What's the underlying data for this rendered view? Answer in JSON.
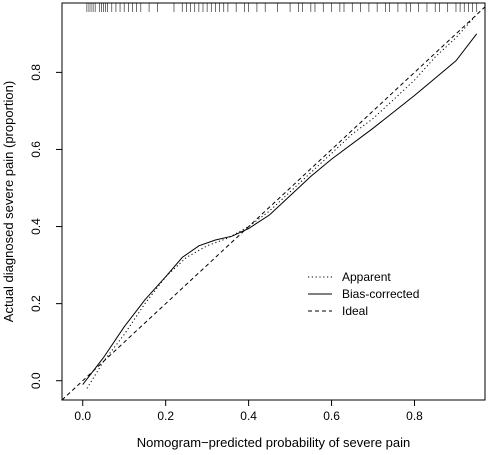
{
  "chart_data": {
    "type": "line",
    "title": "",
    "xlabel": "Nomogram−predicted probability of severe pain",
    "ylabel": "Actual diagnosed severe pain (proportion)",
    "xlim": [
      -0.05,
      0.97
    ],
    "ylim": [
      -0.05,
      0.98
    ],
    "x_ticks": [
      0.0,
      0.2,
      0.4,
      0.6,
      0.8
    ],
    "x_tick_labels": [
      "0.0",
      "0.2",
      "0.4",
      "0.6",
      "0.8"
    ],
    "y_ticks": [
      0.0,
      0.2,
      0.4,
      0.6,
      0.8
    ],
    "y_tick_labels": [
      "0.0",
      "0.2",
      "0.4",
      "0.6",
      "0.8"
    ],
    "grid": false,
    "legend_position": "lower-right",
    "series": [
      {
        "name": "Apparent",
        "style": "dotted",
        "points": [
          [
            0.01,
            -0.02
          ],
          [
            0.05,
            0.05
          ],
          [
            0.1,
            0.12
          ],
          [
            0.15,
            0.2
          ],
          [
            0.2,
            0.27
          ],
          [
            0.25,
            0.32
          ],
          [
            0.3,
            0.35
          ],
          [
            0.35,
            0.37
          ],
          [
            0.4,
            0.4
          ],
          [
            0.45,
            0.44
          ],
          [
            0.5,
            0.49
          ],
          [
            0.55,
            0.54
          ],
          [
            0.6,
            0.59
          ],
          [
            0.65,
            0.64
          ],
          [
            0.7,
            0.68
          ],
          [
            0.75,
            0.73
          ],
          [
            0.8,
            0.78
          ],
          [
            0.85,
            0.84
          ],
          [
            0.9,
            0.89
          ],
          [
            0.95,
            0.95
          ]
        ]
      },
      {
        "name": "Bias-corrected",
        "style": "solid",
        "points": [
          [
            0.0,
            -0.01
          ],
          [
            0.05,
            0.06
          ],
          [
            0.1,
            0.14
          ],
          [
            0.15,
            0.21
          ],
          [
            0.2,
            0.27
          ],
          [
            0.24,
            0.32
          ],
          [
            0.28,
            0.35
          ],
          [
            0.32,
            0.365
          ],
          [
            0.36,
            0.375
          ],
          [
            0.4,
            0.395
          ],
          [
            0.45,
            0.43
          ],
          [
            0.5,
            0.48
          ],
          [
            0.55,
            0.53
          ],
          [
            0.6,
            0.575
          ],
          [
            0.7,
            0.655
          ],
          [
            0.8,
            0.74
          ],
          [
            0.9,
            0.83
          ],
          [
            0.95,
            0.9
          ]
        ]
      },
      {
        "name": "Ideal",
        "style": "dashed",
        "points": [
          [
            -0.05,
            -0.05
          ],
          [
            0.97,
            0.97
          ]
        ]
      }
    ],
    "rug_positions": [
      0.01,
      0.015,
      0.02,
      0.025,
      0.03,
      0.04,
      0.045,
      0.05,
      0.055,
      0.06,
      0.07,
      0.08,
      0.09,
      0.1,
      0.11,
      0.12,
      0.13,
      0.14,
      0.16,
      0.18,
      0.22,
      0.24,
      0.25,
      0.26,
      0.27,
      0.28,
      0.29,
      0.3,
      0.31,
      0.32,
      0.33,
      0.34,
      0.35,
      0.37,
      0.39,
      0.4,
      0.42,
      0.44,
      0.47,
      0.5,
      0.52,
      0.53,
      0.55,
      0.56,
      0.58,
      0.6,
      0.62,
      0.63,
      0.65,
      0.67,
      0.69,
      0.71,
      0.73,
      0.74,
      0.76,
      0.78,
      0.79,
      0.81,
      0.83,
      0.85,
      0.86,
      0.88,
      0.9,
      0.91,
      0.92,
      0.93,
      0.94,
      0.95
    ],
    "legend": {
      "items": [
        {
          "label": "Apparent",
          "style": "dotted"
        },
        {
          "label": "Bias-corrected",
          "style": "solid"
        },
        {
          "label": "Ideal",
          "style": "dashed"
        }
      ]
    }
  }
}
